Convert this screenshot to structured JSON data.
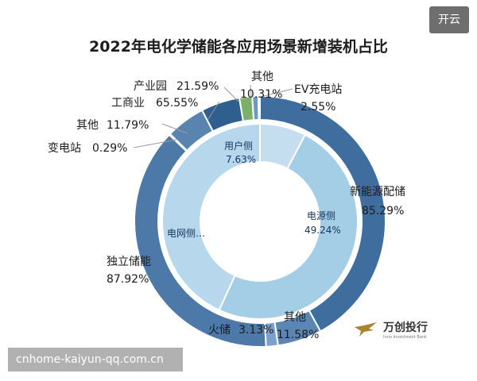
{
  "header": {
    "badge_label": "开云"
  },
  "chart_data": {
    "type": "pie",
    "title": "2022年电化学储能各应用场景新增装机占比",
    "inner_ring": [
      {
        "label": "用户侧",
        "pct_text": "7.63%",
        "value": 7.63,
        "color": "#c5deef"
      },
      {
        "label": "电源侧",
        "pct_text": "49.24%",
        "value": 49.24,
        "color": "#a4cde6"
      },
      {
        "label": "电网侧…",
        "pct_text": "",
        "value": 43.13,
        "color": "#b7d8ec"
      }
    ],
    "outer_ring": [
      {
        "label": "新能源配储",
        "pct_text": "85.29%",
        "value": 41.99,
        "color": "#3f6e9e"
      },
      {
        "label": "其他",
        "pct_text": "11.58%",
        "value": 5.7,
        "color": "#5b86b3"
      },
      {
        "label": "火储",
        "pct_text": "3.13%",
        "value": 1.54,
        "color": "#7aa1c9"
      },
      {
        "label": "独立储能",
        "pct_text": "87.92%",
        "value": 37.92,
        "color": "#4c79a8"
      },
      {
        "label": "变电站",
        "pct_text": "0.29%",
        "value": 0.13,
        "color": "#3a6793"
      },
      {
        "label": "其他",
        "pct_text": "11.79%",
        "value": 5.08,
        "color": "#5a84b0"
      },
      {
        "label": "工商业",
        "pct_text": "65.55%",
        "value": 5.0,
        "color": "#2f5f8e"
      },
      {
        "label": "产业园",
        "pct_text": "21.59%",
        "value": 1.65,
        "color": "#7ab06a"
      },
      {
        "label": "其他",
        "pct_text": "10.31%",
        "value": 0.79,
        "color": "#6d98c2"
      },
      {
        "label": "EV充电站",
        "pct_text": "2.55%",
        "value": 0.19,
        "color": "#2c4f7c"
      }
    ]
  },
  "watermark": {
    "text": "cnhome-kaiyun-qq.com.cn"
  },
  "logo": {
    "name": "万创投行",
    "sub": "Inno Investment Bank"
  }
}
